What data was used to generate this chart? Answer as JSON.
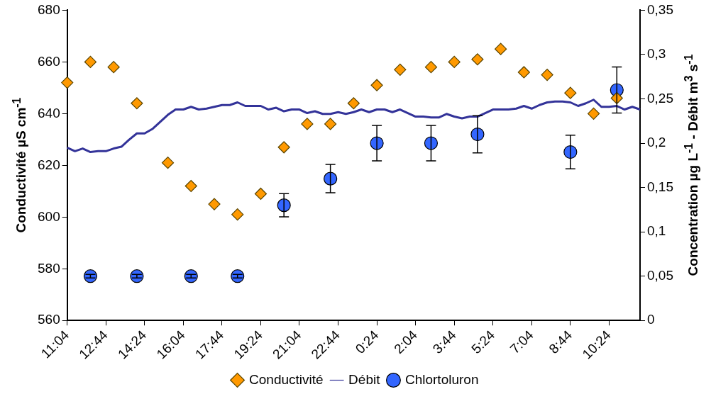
{
  "chart_data": {
    "type": "scatter",
    "ylabel": "Conductivité µS cm$^{-1}$",
    "y2label": "Concentration µg L$^{-1}$   -   Débit m$^{3}$ s$^{-1}$",
    "categories": [
      "11:04",
      null,
      null,
      null,
      null,
      "12:44",
      null,
      null,
      null,
      null,
      "14:24",
      null,
      null,
      null,
      null,
      "16:04",
      null,
      null,
      null,
      null,
      "17:44",
      null,
      null,
      null,
      null,
      "19:24",
      null,
      null,
      null,
      null,
      "21:04",
      null,
      null,
      null,
      null,
      "22:44",
      null,
      null,
      null,
      null,
      "0:24",
      null,
      null,
      null,
      null,
      "2:04",
      null,
      null,
      null,
      null,
      "3:44",
      null,
      null,
      null,
      null,
      "5:24",
      null,
      null,
      null,
      null,
      "7:04",
      null,
      null,
      null,
      null,
      "8:44",
      null,
      null,
      null,
      null,
      "10:24",
      null,
      null,
      null,
      null
    ],
    "ylim": [
      560,
      680
    ],
    "yticks": [
      560,
      580,
      600,
      620,
      640,
      660,
      680
    ],
    "y2lim": [
      0,
      0.35
    ],
    "y2ticks": [
      {
        "value": 0,
        "label": "0"
      },
      {
        "value": 0.05,
        "label": "0,05"
      },
      {
        "value": 0.1,
        "label": "0,1"
      },
      {
        "value": 0.15,
        "label": "0,15"
      },
      {
        "value": 0.2,
        "label": "0,2"
      },
      {
        "value": 0.25,
        "label": "0,25"
      },
      {
        "value": 0.3,
        "label": "0,3"
      },
      {
        "value": 0.35,
        "label": "0,35"
      }
    ],
    "grid": false,
    "legend": "bottom",
    "series": [
      {
        "name": "Conductivité",
        "type": "scatter",
        "marker": "diamond",
        "color": "#ff9900",
        "values": [
          652,
          null,
          null,
          660,
          null,
          null,
          658,
          null,
          null,
          644,
          null,
          null,
          null,
          621,
          null,
          null,
          612,
          null,
          null,
          605,
          null,
          null,
          601,
          null,
          null,
          609,
          null,
          null,
          627,
          null,
          null,
          636,
          null,
          null,
          636,
          null,
          null,
          644,
          null,
          null,
          651,
          null,
          null,
          657,
          null,
          null,
          null,
          658,
          null,
          null,
          660,
          null,
          null,
          661,
          null,
          null,
          665,
          null,
          null,
          656,
          null,
          null,
          655,
          null,
          null,
          648,
          null,
          null,
          640,
          null,
          null,
          646,
          null,
          null,
          null
        ]
      },
      {
        "name": "Débit",
        "type": "line",
        "marker": "none",
        "line_style": "solid",
        "axis": "y2",
        "color": "#333399",
        "values": [
          0.195,
          0.191,
          0.194,
          0.19,
          0.191,
          0.191,
          0.194,
          0.196,
          0.204,
          0.211,
          0.211,
          0.216,
          0.224,
          0.232,
          0.238,
          0.238,
          0.241,
          0.238,
          0.239,
          0.241,
          0.243,
          0.243,
          0.246,
          0.242,
          0.242,
          0.242,
          0.238,
          0.24,
          0.236,
          0.238,
          0.238,
          0.234,
          0.236,
          0.233,
          0.233,
          0.235,
          0.233,
          0.235,
          0.238,
          0.235,
          0.238,
          0.238,
          0.235,
          0.238,
          0.234,
          0.23,
          0.23,
          0.229,
          0.229,
          0.233,
          0.23,
          0.228,
          0.23,
          0.23,
          0.234,
          0.238,
          0.238,
          0.238,
          0.239,
          0.242,
          0.239,
          0.243,
          0.246,
          0.247,
          0.247,
          0.246,
          0.242,
          0.245,
          0.249,
          0.241,
          0.241,
          0.242,
          0.238,
          0.241,
          0.238
        ]
      },
      {
        "name": "Chlortoluron",
        "type": "scatter",
        "marker": "circle",
        "axis": "y2",
        "color": "#3366ff",
        "values": [
          null,
          null,
          null,
          0.05,
          null,
          null,
          null,
          null,
          null,
          0.05,
          null,
          null,
          null,
          null,
          null,
          null,
          0.05,
          null,
          null,
          null,
          null,
          null,
          0.05,
          null,
          null,
          null,
          null,
          null,
          0.13,
          null,
          null,
          null,
          null,
          null,
          0.16,
          null,
          null,
          null,
          null,
          null,
          0.2,
          null,
          null,
          null,
          null,
          null,
          null,
          0.2,
          null,
          null,
          null,
          null,
          null,
          0.21,
          null,
          null,
          null,
          null,
          null,
          null,
          null,
          null,
          null,
          null,
          null,
          0.19,
          null,
          null,
          null,
          null,
          null,
          0.26,
          null,
          null,
          null
        ],
        "errors": [
          null,
          null,
          null,
          0.002,
          null,
          null,
          null,
          null,
          null,
          0.002,
          null,
          null,
          null,
          null,
          null,
          null,
          0.002,
          null,
          null,
          null,
          null,
          null,
          0.002,
          null,
          null,
          null,
          null,
          null,
          0.013,
          null,
          null,
          null,
          null,
          null,
          0.016,
          null,
          null,
          null,
          null,
          null,
          0.02,
          null,
          null,
          null,
          null,
          null,
          null,
          0.02,
          null,
          null,
          null,
          null,
          null,
          0.021,
          null,
          null,
          null,
          null,
          null,
          null,
          null,
          null,
          null,
          null,
          null,
          0.019,
          null,
          null,
          null,
          null,
          null,
          0.026,
          null,
          null,
          null
        ]
      }
    ]
  }
}
